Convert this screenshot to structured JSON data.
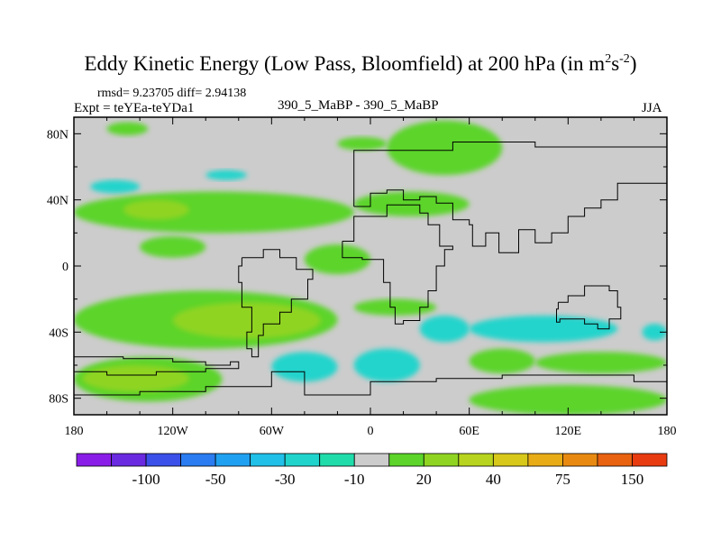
{
  "chart_data": {
    "type": "heatmap",
    "title": "Eddy Kinetic Energy (Low Pass, Bloomfield) at 200 hPa (in m",
    "title_sup1": "2",
    "title_mid": "s",
    "title_sup2": "-2",
    "title_end": ")",
    "stats_text": "rmsd= 9.23705 diff= 2.94138",
    "left_label": "Expt = teYEa-teYDa1",
    "center_label": "390_5_MaBP - 390_5_MaBP",
    "right_label": "JJA",
    "xlim": [
      -180,
      180
    ],
    "ylim": [
      -90,
      90
    ],
    "x_ticks": [
      {
        "value": -180,
        "label": "180"
      },
      {
        "value": -120,
        "label": "120W"
      },
      {
        "value": -60,
        "label": "60W"
      },
      {
        "value": 0,
        "label": "0"
      },
      {
        "value": 60,
        "label": "60E"
      },
      {
        "value": 120,
        "label": "120E"
      },
      {
        "value": 180,
        "label": "180"
      }
    ],
    "y_ticks": [
      {
        "value": 80,
        "label": "80N"
      },
      {
        "value": 40,
        "label": "40N"
      },
      {
        "value": 0,
        "label": "0"
      },
      {
        "value": -40,
        "label": "40S"
      },
      {
        "value": -80,
        "label": "80S"
      }
    ],
    "colorbar": {
      "colors": [
        "#8a1ee8",
        "#6a2ae0",
        "#3a50e8",
        "#2a7cf0",
        "#20a0f0",
        "#20c0e8",
        "#20d4cc",
        "#20dcaa",
        "#cccccc",
        "#5cd42a",
        "#90d422",
        "#b8d41e",
        "#d8c81a",
        "#e8ac16",
        "#e88a12",
        "#e86210",
        "#e83c10"
      ],
      "labels": [
        {
          "after_box": 2,
          "text": "-100"
        },
        {
          "after_box": 4,
          "text": "-50"
        },
        {
          "after_box": 6,
          "text": "-30"
        },
        {
          "after_box": 8,
          "text": "-10"
        },
        {
          "after_box": 10,
          "text": "20"
        },
        {
          "after_box": 12,
          "text": "40"
        },
        {
          "after_box": 14,
          "text": "75"
        },
        {
          "after_box": 16,
          "text": "150"
        }
      ]
    },
    "field_colors": {
      "background": "#cccccc",
      "pos_light": "#5cd42a",
      "pos_mid": "#90d422",
      "pos_high": "#b8d41e",
      "neg_light": "#20d4cc"
    },
    "regions": [
      {
        "level": "pos_light",
        "lon": [
          -160,
          -135
        ],
        "lat": [
          79,
          87
        ]
      },
      {
        "level": "pos_light",
        "lon": [
          -20,
          10
        ],
        "lat": [
          70,
          78
        ]
      },
      {
        "level": "pos_light",
        "lon": [
          10,
          80
        ],
        "lat": [
          55,
          88
        ]
      },
      {
        "level": "neg_light",
        "lon": [
          -170,
          -140
        ],
        "lat": [
          44,
          52
        ]
      },
      {
        "level": "neg_light",
        "lon": [
          -100,
          -75
        ],
        "lat": [
          52,
          58
        ]
      },
      {
        "level": "pos_light",
        "lon": [
          -180,
          -10
        ],
        "lat": [
          20,
          45
        ]
      },
      {
        "level": "pos_mid",
        "lon": [
          -150,
          -110
        ],
        "lat": [
          28,
          40
        ]
      },
      {
        "level": "pos_light",
        "lon": [
          -10,
          60
        ],
        "lat": [
          30,
          45
        ]
      },
      {
        "level": "pos_light",
        "lon": [
          -140,
          -100
        ],
        "lat": [
          5,
          18
        ]
      },
      {
        "level": "pos_light",
        "lon": [
          -40,
          0
        ],
        "lat": [
          -5,
          13
        ]
      },
      {
        "level": "pos_light",
        "lon": [
          -180,
          -20
        ],
        "lat": [
          -50,
          -15
        ]
      },
      {
        "level": "pos_mid",
        "lon": [
          -120,
          -30
        ],
        "lat": [
          -44,
          -22
        ]
      },
      {
        "level": "pos_light",
        "lon": [
          -180,
          -90
        ],
        "lat": [
          -82,
          -55
        ]
      },
      {
        "level": "pos_mid",
        "lon": [
          -175,
          -110
        ],
        "lat": [
          -76,
          -60
        ]
      },
      {
        "level": "neg_light",
        "lon": [
          -60,
          -20
        ],
        "lat": [
          -70,
          -52
        ]
      },
      {
        "level": "neg_light",
        "lon": [
          -10,
          30
        ],
        "lat": [
          -70,
          -50
        ]
      },
      {
        "level": "neg_light",
        "lon": [
          30,
          60
        ],
        "lat": [
          -46,
          -30
        ]
      },
      {
        "level": "neg_light",
        "lon": [
          60,
          150
        ],
        "lat": [
          -46,
          -30
        ]
      },
      {
        "level": "pos_light",
        "lon": [
          -10,
          40
        ],
        "lat": [
          -30,
          -20
        ]
      },
      {
        "level": "pos_light",
        "lon": [
          60,
          100
        ],
        "lat": [
          -65,
          -50
        ]
      },
      {
        "level": "pos_light",
        "lon": [
          100,
          180
        ],
        "lat": [
          -65,
          -52
        ]
      },
      {
        "level": "pos_light",
        "lon": [
          60,
          180
        ],
        "lat": [
          -90,
          -72
        ]
      },
      {
        "level": "neg_light",
        "lon": [
          165,
          180
        ],
        "lat": [
          -45,
          -35
        ]
      }
    ],
    "coastlines": [
      {
        "name": "south-america",
        "points": [
          [
            -78,
            5
          ],
          [
            -65,
            10
          ],
          [
            -55,
            5
          ],
          [
            -45,
            -2
          ],
          [
            -35,
            -8
          ],
          [
            -38,
            -20
          ],
          [
            -48,
            -28
          ],
          [
            -55,
            -35
          ],
          [
            -65,
            -42
          ],
          [
            -68,
            -55
          ],
          [
            -72,
            -50
          ],
          [
            -75,
            -40
          ],
          [
            -72,
            -25
          ],
          [
            -78,
            -10
          ],
          [
            -80,
            0
          ],
          [
            -78,
            5
          ]
        ]
      },
      {
        "name": "north-america",
        "points": [
          [
            -180,
            -55
          ],
          [
            -150,
            -56
          ],
          [
            -120,
            -58
          ],
          [
            -100,
            -60
          ],
          [
            -85,
            -58
          ],
          [
            -80,
            -62
          ],
          [
            -100,
            -64
          ],
          [
            -130,
            -66
          ],
          [
            -160,
            -64
          ],
          [
            -180,
            -60
          ]
        ]
      },
      {
        "name": "africa",
        "points": [
          [
            -17,
            15
          ],
          [
            -10,
            30
          ],
          [
            10,
            37
          ],
          [
            30,
            32
          ],
          [
            35,
            25
          ],
          [
            42,
            12
          ],
          [
            50,
            10
          ],
          [
            45,
            0
          ],
          [
            40,
            -15
          ],
          [
            35,
            -25
          ],
          [
            30,
            -33
          ],
          [
            20,
            -35
          ],
          [
            15,
            -25
          ],
          [
            12,
            -10
          ],
          [
            8,
            4
          ],
          [
            -5,
            5
          ],
          [
            -17,
            15
          ]
        ]
      },
      {
        "name": "eurasia",
        "points": [
          [
            -10,
            36
          ],
          [
            0,
            44
          ],
          [
            10,
            46
          ],
          [
            20,
            40
          ],
          [
            30,
            42
          ],
          [
            40,
            38
          ],
          [
            50,
            28
          ],
          [
            60,
            25
          ],
          [
            62,
            12
          ],
          [
            70,
            20
          ],
          [
            78,
            8
          ],
          [
            90,
            22
          ],
          [
            100,
            14
          ],
          [
            110,
            20
          ],
          [
            120,
            30
          ],
          [
            130,
            35
          ],
          [
            140,
            40
          ],
          [
            150,
            50
          ],
          [
            180,
            60
          ],
          [
            180,
            72
          ],
          [
            100,
            75
          ],
          [
            50,
            70
          ],
          [
            0,
            70
          ],
          [
            -10,
            50
          ],
          [
            -10,
            36
          ]
        ]
      },
      {
        "name": "australia",
        "points": [
          [
            114,
            -22
          ],
          [
            120,
            -18
          ],
          [
            130,
            -12
          ],
          [
            138,
            -12
          ],
          [
            145,
            -15
          ],
          [
            150,
            -25
          ],
          [
            152,
            -32
          ],
          [
            145,
            -38
          ],
          [
            138,
            -35
          ],
          [
            130,
            -32
          ],
          [
            115,
            -34
          ],
          [
            113,
            -26
          ],
          [
            114,
            -22
          ]
        ]
      },
      {
        "name": "antarctica",
        "points": [
          [
            -180,
            -78
          ],
          [
            -140,
            -76
          ],
          [
            -100,
            -73
          ],
          [
            -60,
            -64
          ],
          [
            -40,
            -78
          ],
          [
            0,
            -70
          ],
          [
            40,
            -68
          ],
          [
            80,
            -66
          ],
          [
            120,
            -66
          ],
          [
            160,
            -70
          ],
          [
            180,
            -78
          ]
        ]
      }
    ]
  }
}
